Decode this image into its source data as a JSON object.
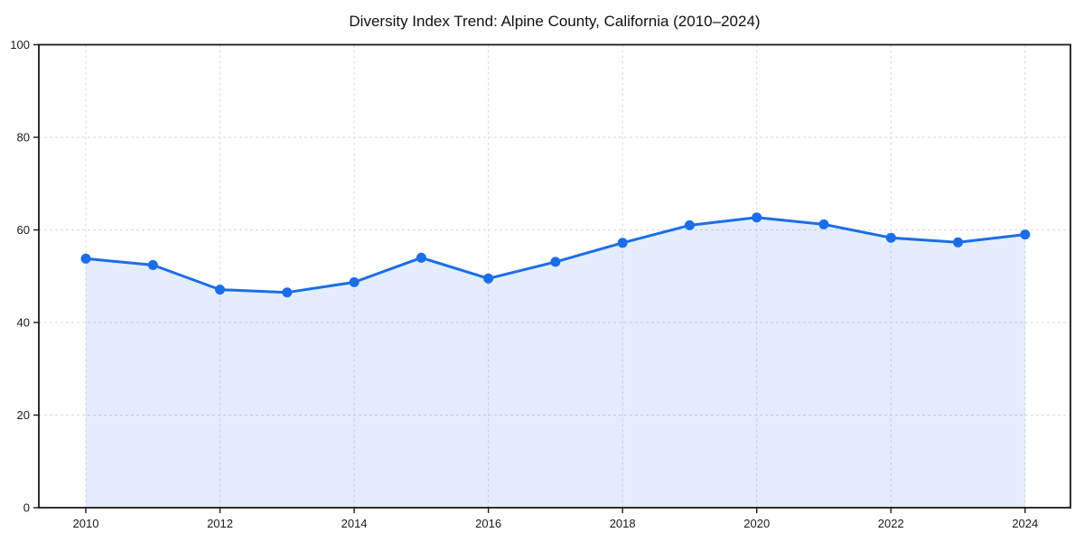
{
  "chart_data": {
    "type": "area",
    "title": "Diversity Index Trend: Alpine County, California (2010–2024)",
    "x": [
      2010,
      2011,
      2012,
      2013,
      2014,
      2015,
      2016,
      2017,
      2018,
      2019,
      2020,
      2021,
      2022,
      2023,
      2024
    ],
    "series": [
      {
        "name": "Diversity Index",
        "values": [
          53.8,
          52.4,
          47.1,
          46.5,
          48.7,
          54.0,
          49.5,
          53.1,
          57.2,
          61.0,
          62.7,
          61.2,
          58.3,
          57.3,
          59.0
        ]
      }
    ],
    "xlabel": "",
    "ylabel": "",
    "ylim": [
      0,
      100
    ],
    "yticks": [
      0,
      20,
      40,
      60,
      80,
      100
    ],
    "xticks": [
      2010,
      2012,
      2014,
      2016,
      2018,
      2020,
      2022,
      2024
    ],
    "grid": true,
    "legend": false,
    "colors": {
      "line": "#1b6ee8",
      "marker": "#1b6ee8",
      "fill": "rgba(27,110,232,0.12)",
      "gridline": "#d9d9d9",
      "spine": "#1a1a1a",
      "text": "#1a1a1a"
    },
    "marker": "circle",
    "marker_radius": 5.5,
    "line_width": 3
  }
}
